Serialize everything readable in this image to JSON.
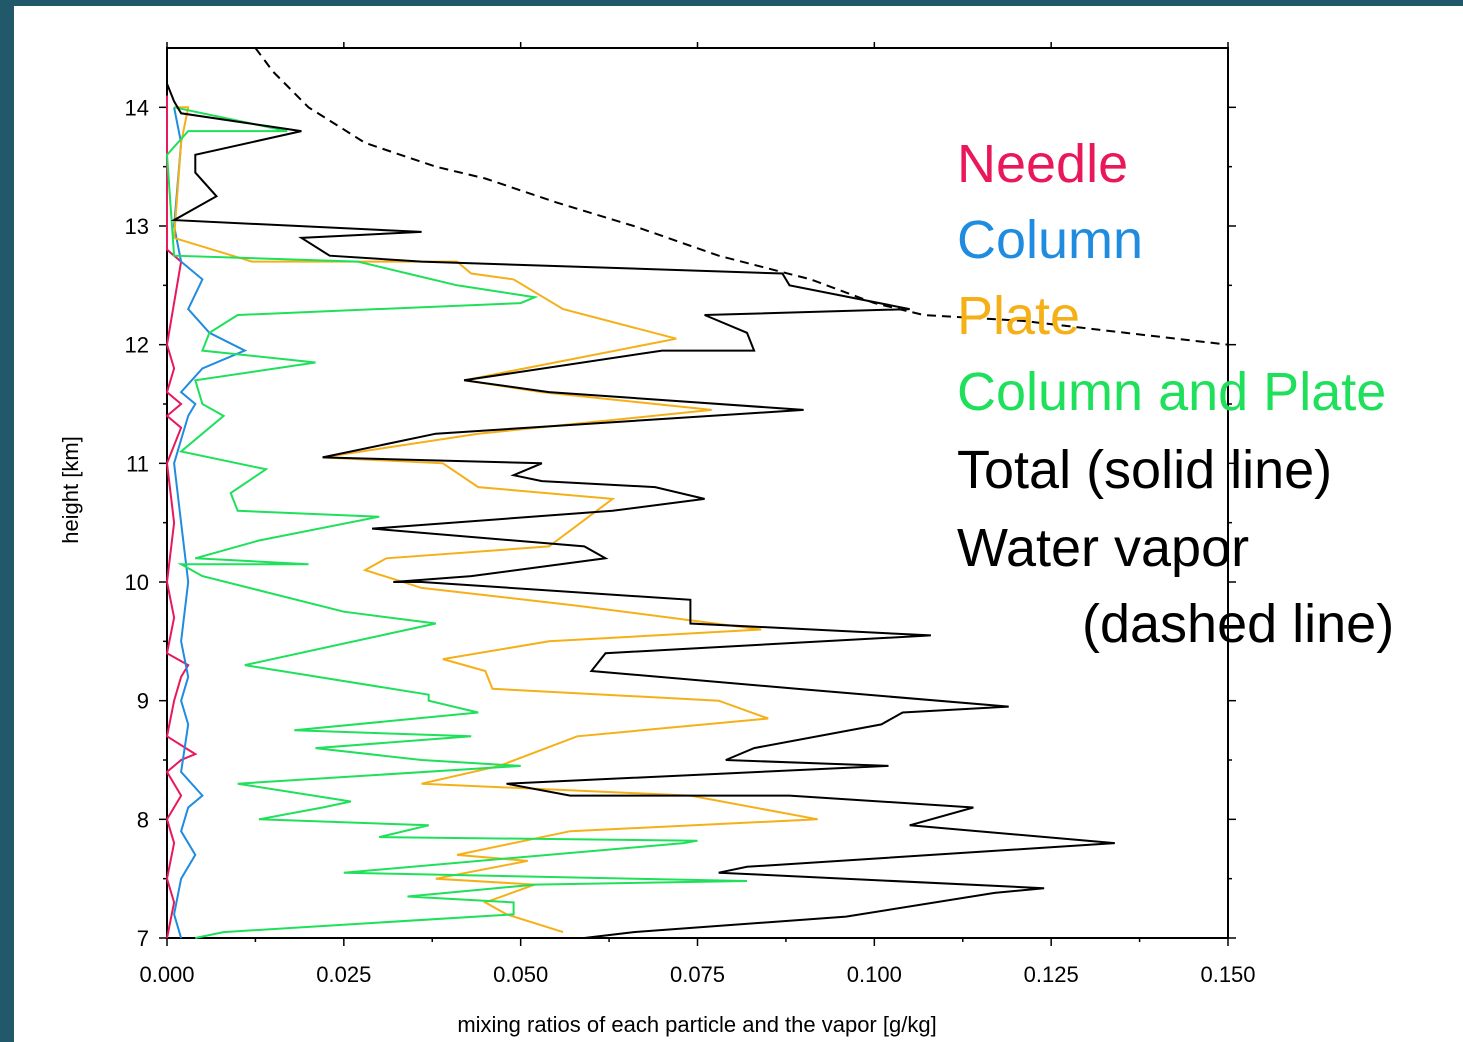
{
  "chart_data": {
    "type": "line",
    "title": "",
    "xlabel": "mixing ratios of each particle and the vapor [g/kg]",
    "ylabel": "height [km]",
    "xlim": [
      0.0,
      0.15
    ],
    "ylim": [
      7,
      14.5
    ],
    "x_ticks": [
      "0.000",
      "0.025",
      "0.050",
      "0.075",
      "0.100",
      "0.125",
      "0.150"
    ],
    "y_ticks": [
      "7",
      "8",
      "9",
      "10",
      "11",
      "12",
      "13",
      "14"
    ],
    "x_tick_values": [
      0.0,
      0.025,
      0.05,
      0.075,
      0.1,
      0.125,
      0.15
    ],
    "y_tick_values": [
      7,
      8,
      9,
      10,
      11,
      12,
      13,
      14
    ],
    "legend": [
      {
        "label": "Needle",
        "color": "#e8185a"
      },
      {
        "label": "Column",
        "color": "#1f8ce0"
      },
      {
        "label": "Plate",
        "color": "#f5b018"
      },
      {
        "label": "Column and Plate",
        "color": "#1ee05a"
      },
      {
        "label": "Total (solid line)",
        "color": "#000000"
      },
      {
        "label": "Water vapor",
        "color": "#000000"
      },
      {
        "label": "(dashed line)",
        "color": "#000000"
      }
    ],
    "series": [
      {
        "color": "#e8185a",
        "dash": false,
        "points": [
          [
            0.0,
            7.0
          ],
          [
            0.001,
            7.3
          ],
          [
            0.0,
            7.5
          ],
          [
            0.001,
            7.8
          ],
          [
            0.0,
            8.0
          ],
          [
            0.002,
            8.2
          ],
          [
            0.0,
            8.4
          ],
          [
            0.002,
            8.5
          ],
          [
            0.004,
            8.55
          ],
          [
            0.0,
            8.7
          ],
          [
            0.001,
            9.0
          ],
          [
            0.002,
            9.2
          ],
          [
            0.003,
            9.3
          ],
          [
            0.0,
            9.4
          ],
          [
            0.001,
            9.7
          ],
          [
            0.0,
            10.0
          ],
          [
            0.001,
            10.5
          ],
          [
            0.0,
            11.0
          ],
          [
            0.002,
            11.3
          ],
          [
            0.0,
            11.4
          ],
          [
            0.002,
            11.5
          ],
          [
            0.0,
            11.6
          ],
          [
            0.001,
            11.8
          ],
          [
            0.0,
            12.0
          ],
          [
            0.002,
            12.7
          ],
          [
            0.0,
            12.8
          ],
          [
            0.0,
            14.1
          ]
        ]
      },
      {
        "color": "#1f8ce0",
        "dash": false,
        "points": [
          [
            0.002,
            7.0
          ],
          [
            0.001,
            7.2
          ],
          [
            0.002,
            7.5
          ],
          [
            0.004,
            7.7
          ],
          [
            0.002,
            7.9
          ],
          [
            0.003,
            8.1
          ],
          [
            0.005,
            8.2
          ],
          [
            0.002,
            8.4
          ],
          [
            0.003,
            8.8
          ],
          [
            0.002,
            9.0
          ],
          [
            0.003,
            9.2
          ],
          [
            0.002,
            9.5
          ],
          [
            0.003,
            10.0
          ],
          [
            0.002,
            10.5
          ],
          [
            0.001,
            11.0
          ],
          [
            0.002,
            11.2
          ],
          [
            0.003,
            11.4
          ],
          [
            0.004,
            11.5
          ],
          [
            0.002,
            11.6
          ],
          [
            0.005,
            11.8
          ],
          [
            0.011,
            11.95
          ],
          [
            0.006,
            12.1
          ],
          [
            0.003,
            12.3
          ],
          [
            0.005,
            12.55
          ],
          [
            0.002,
            12.7
          ],
          [
            0.001,
            13.0
          ],
          [
            0.002,
            13.7
          ],
          [
            0.001,
            14.0
          ]
        ]
      },
      {
        "color": "#f5b018",
        "dash": false,
        "points": [
          [
            0.056,
            7.05
          ],
          [
            0.048,
            7.2
          ],
          [
            0.045,
            7.3
          ],
          [
            0.052,
            7.45
          ],
          [
            0.038,
            7.5
          ],
          [
            0.051,
            7.65
          ],
          [
            0.041,
            7.7
          ],
          [
            0.057,
            7.9
          ],
          [
            0.092,
            8.0
          ],
          [
            0.074,
            8.2
          ],
          [
            0.036,
            8.3
          ],
          [
            0.047,
            8.45
          ],
          [
            0.058,
            8.7
          ],
          [
            0.085,
            8.85
          ],
          [
            0.078,
            9.0
          ],
          [
            0.046,
            9.1
          ],
          [
            0.045,
            9.25
          ],
          [
            0.039,
            9.35
          ],
          [
            0.054,
            9.5
          ],
          [
            0.084,
            9.6
          ],
          [
            0.058,
            9.8
          ],
          [
            0.036,
            9.95
          ],
          [
            0.028,
            10.1
          ],
          [
            0.031,
            10.2
          ],
          [
            0.054,
            10.3
          ],
          [
            0.063,
            10.7
          ],
          [
            0.044,
            10.8
          ],
          [
            0.039,
            11.0
          ],
          [
            0.022,
            11.05
          ],
          [
            0.044,
            11.25
          ],
          [
            0.077,
            11.45
          ],
          [
            0.053,
            11.6
          ],
          [
            0.042,
            11.7
          ],
          [
            0.072,
            12.05
          ],
          [
            0.056,
            12.3
          ],
          [
            0.049,
            12.55
          ],
          [
            0.043,
            12.6
          ],
          [
            0.041,
            12.7
          ],
          [
            0.03,
            12.7
          ],
          [
            0.012,
            12.7
          ],
          [
            0.001,
            12.9
          ],
          [
            0.002,
            13.7
          ],
          [
            0.003,
            14.0
          ],
          [
            0.001,
            14.0
          ]
        ]
      },
      {
        "color": "#1ee05a",
        "dash": false,
        "points": [
          [
            0.004,
            7.0
          ],
          [
            0.008,
            7.05
          ],
          [
            0.049,
            7.2
          ],
          [
            0.049,
            7.3
          ],
          [
            0.034,
            7.35
          ],
          [
            0.052,
            7.45
          ],
          [
            0.082,
            7.48
          ],
          [
            0.025,
            7.55
          ],
          [
            0.073,
            7.8
          ],
          [
            0.075,
            7.82
          ],
          [
            0.03,
            7.85
          ],
          [
            0.037,
            7.95
          ],
          [
            0.013,
            8.0
          ],
          [
            0.022,
            8.1
          ],
          [
            0.026,
            8.15
          ],
          [
            0.01,
            8.3
          ],
          [
            0.05,
            8.45
          ],
          [
            0.036,
            8.5
          ],
          [
            0.021,
            8.6
          ],
          [
            0.043,
            8.7
          ],
          [
            0.018,
            8.75
          ],
          [
            0.044,
            8.9
          ],
          [
            0.037,
            9.0
          ],
          [
            0.037,
            9.05
          ],
          [
            0.011,
            9.3
          ],
          [
            0.038,
            9.65
          ],
          [
            0.025,
            9.75
          ],
          [
            0.005,
            10.05
          ],
          [
            0.002,
            10.15
          ],
          [
            0.02,
            10.15
          ],
          [
            0.004,
            10.2
          ],
          [
            0.013,
            10.35
          ],
          [
            0.03,
            10.55
          ],
          [
            0.01,
            10.6
          ],
          [
            0.009,
            10.75
          ],
          [
            0.014,
            10.95
          ],
          [
            0.002,
            11.1
          ],
          [
            0.008,
            11.4
          ],
          [
            0.005,
            11.5
          ],
          [
            0.004,
            11.7
          ],
          [
            0.021,
            11.85
          ],
          [
            0.005,
            11.95
          ],
          [
            0.006,
            12.1
          ],
          [
            0.01,
            12.25
          ],
          [
            0.05,
            12.35
          ],
          [
            0.052,
            12.4
          ],
          [
            0.041,
            12.5
          ],
          [
            0.034,
            12.6
          ],
          [
            0.027,
            12.7
          ],
          [
            0.001,
            12.75
          ],
          [
            0.0,
            13.6
          ],
          [
            0.003,
            13.8
          ],
          [
            0.017,
            13.8
          ],
          [
            0.001,
            14.0
          ]
        ]
      },
      {
        "color": "#000000",
        "dash": false,
        "points": [
          [
            0.059,
            7.0
          ],
          [
            0.066,
            7.05
          ],
          [
            0.096,
            7.18
          ],
          [
            0.117,
            7.38
          ],
          [
            0.124,
            7.42
          ],
          [
            0.078,
            7.55
          ],
          [
            0.082,
            7.6
          ],
          [
            0.134,
            7.8
          ],
          [
            0.105,
            7.95
          ],
          [
            0.114,
            8.1
          ],
          [
            0.088,
            8.2
          ],
          [
            0.057,
            8.2
          ],
          [
            0.048,
            8.3
          ],
          [
            0.102,
            8.45
          ],
          [
            0.079,
            8.5
          ],
          [
            0.083,
            8.6
          ],
          [
            0.101,
            8.8
          ],
          [
            0.104,
            8.9
          ],
          [
            0.119,
            8.95
          ],
          [
            0.089,
            9.1
          ],
          [
            0.06,
            9.25
          ],
          [
            0.062,
            9.4
          ],
          [
            0.108,
            9.55
          ],
          [
            0.074,
            9.65
          ],
          [
            0.074,
            9.85
          ],
          [
            0.036,
            10.0
          ],
          [
            0.032,
            10.0
          ],
          [
            0.043,
            10.05
          ],
          [
            0.062,
            10.2
          ],
          [
            0.059,
            10.3
          ],
          [
            0.029,
            10.45
          ],
          [
            0.063,
            10.6
          ],
          [
            0.076,
            10.7
          ],
          [
            0.069,
            10.8
          ],
          [
            0.053,
            10.85
          ],
          [
            0.049,
            10.9
          ],
          [
            0.053,
            11.0
          ],
          [
            0.022,
            11.05
          ],
          [
            0.038,
            11.25
          ],
          [
            0.09,
            11.45
          ],
          [
            0.054,
            11.6
          ],
          [
            0.042,
            11.7
          ],
          [
            0.07,
            11.95
          ],
          [
            0.083,
            11.95
          ],
          [
            0.082,
            12.1
          ],
          [
            0.076,
            12.25
          ],
          [
            0.105,
            12.3
          ],
          [
            0.088,
            12.5
          ],
          [
            0.087,
            12.6
          ],
          [
            0.036,
            12.7
          ],
          [
            0.023,
            12.75
          ],
          [
            0.019,
            12.9
          ],
          [
            0.036,
            12.95
          ],
          [
            0.001,
            13.05
          ],
          [
            0.007,
            13.25
          ],
          [
            0.004,
            13.45
          ],
          [
            0.004,
            13.6
          ],
          [
            0.019,
            13.8
          ],
          [
            0.002,
            13.95
          ],
          [
            0.001,
            14.05
          ],
          [
            0.0,
            14.2
          ]
        ]
      },
      {
        "color": "#000000",
        "dash": true,
        "points": [
          [
            0.0125,
            14.5
          ],
          [
            0.015,
            14.3
          ],
          [
            0.02,
            14.0
          ],
          [
            0.028,
            13.7
          ],
          [
            0.038,
            13.5
          ],
          [
            0.045,
            13.4
          ],
          [
            0.055,
            13.2
          ],
          [
            0.066,
            13.0
          ],
          [
            0.078,
            12.75
          ],
          [
            0.091,
            12.55
          ],
          [
            0.1,
            12.35
          ],
          [
            0.107,
            12.25
          ],
          [
            0.121,
            12.2
          ],
          [
            0.15,
            12.0
          ]
        ]
      }
    ]
  }
}
